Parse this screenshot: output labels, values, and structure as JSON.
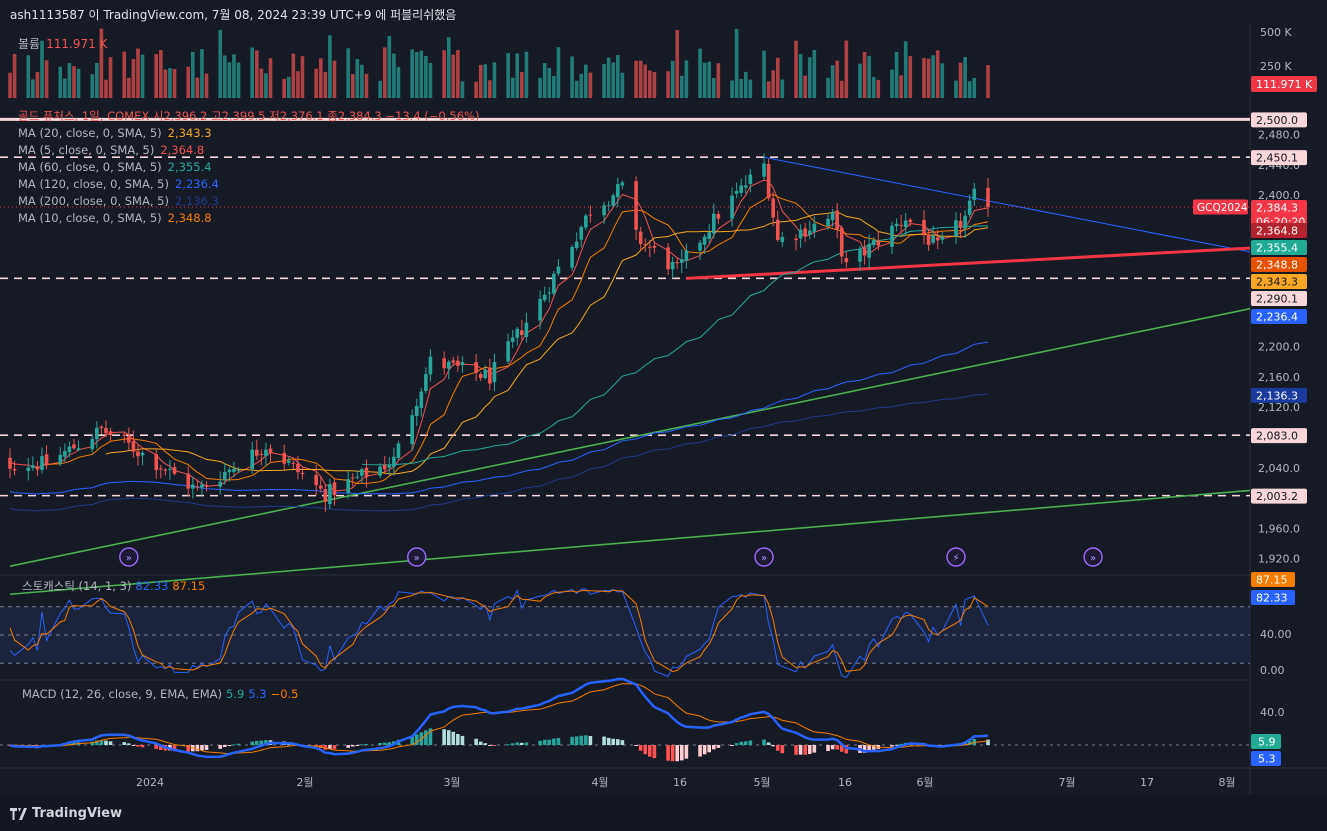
{
  "header": {
    "text": "ash1113587 이 TradingView.com, 7월 08, 2024 23:39 UTC+9 에 퍼블리쉬했음"
  },
  "volume": {
    "label": "볼륨",
    "value": "111.971 K",
    "axis": [
      "500 K",
      "250 K"
    ],
    "badge": "111.971 K"
  },
  "legend": {
    "title": "골드 퓨처스, 1일, COMEX  시2,396.2  고2,399.5  저2,376.1  종2,384.3  −13.4 (−0.56%)",
    "items": [
      {
        "label": "MA (20, close, 0, SMA, 5)",
        "value": "2,343.3",
        "color": "#f5a623"
      },
      {
        "label": "MA (5, close, 0, SMA, 5)",
        "value": "2,364.8",
        "color": "#ef5350"
      },
      {
        "label": "MA (60, close, 0, SMA, 5)",
        "value": "2,355.4",
        "color": "#26a69a"
      },
      {
        "label": "MA (120, close, 0, SMA, 5)",
        "value": "2,236.4",
        "color": "#2962ff"
      },
      {
        "label": "MA (200, close, 0, SMA, 5)",
        "value": "2,136.3",
        "color": "#1e3a8a"
      },
      {
        "label": "MA (10, close, 0, SMA, 5)",
        "value": "2,348.8",
        "color": "#f57c00"
      }
    ]
  },
  "price_axis": {
    "ticks": [
      "2,480.0",
      "2,440.0",
      "2,400.0",
      "2,200.0",
      "2,160.0",
      "2,120.0",
      "2,040.0",
      "1,960.0",
      "1,920.0"
    ],
    "badges": [
      {
        "text": "2,500.0",
        "bg": "#f8d7da",
        "fg": "#131722"
      },
      {
        "text": "2,450.1",
        "bg": "#f8d7da",
        "fg": "#131722"
      },
      {
        "text": "2,384.3",
        "bg": "#f23645",
        "fg": "#ffffff"
      },
      {
        "text": "06:20:20",
        "bg": "#f23645",
        "fg": "#ffffff"
      },
      {
        "text": "2,364.8",
        "bg": "#b2222f",
        "fg": "#ffffff"
      },
      {
        "text": "2,355.4",
        "bg": "#22ab94",
        "fg": "#ffffff"
      },
      {
        "text": "2,348.8",
        "bg": "#e65100",
        "fg": "#ffffff"
      },
      {
        "text": "2,343.3",
        "bg": "#f9a825",
        "fg": "#131722"
      },
      {
        "text": "2,290.1",
        "bg": "#f8d7da",
        "fg": "#131722"
      },
      {
        "text": "2,236.4",
        "bg": "#2962ff",
        "fg": "#ffffff"
      },
      {
        "text": "2,136.3",
        "bg": "#1a3a9e",
        "fg": "#ffffff"
      },
      {
        "text": "2,083.0",
        "bg": "#f8d7da",
        "fg": "#131722"
      },
      {
        "text": "2,003.2",
        "bg": "#f8d7da",
        "fg": "#131722"
      }
    ],
    "symbol_tag": "GCQ2024"
  },
  "stochastic": {
    "label": "스토캐스틱 (14, 1, 3)",
    "k": "82.33",
    "d": "87.15",
    "axis": [
      "40.00",
      "0.00"
    ],
    "badges": [
      {
        "text": "87.15",
        "bg": "#f57c00"
      },
      {
        "text": "82.33",
        "bg": "#2962ff"
      }
    ]
  },
  "macd": {
    "label": "MACD (12, 26, close, 9, EMA, EMA)",
    "hist": "5.9",
    "macd": "5.3",
    "signal": "−0.5",
    "axis": [
      "40.0"
    ],
    "badges": [
      {
        "text": "5.9",
        "bg": "#22ab94"
      },
      {
        "text": "5.3",
        "bg": "#2962ff"
      }
    ]
  },
  "time_axis": [
    "2024",
    "2월",
    "3월",
    "4월",
    "16",
    "5월",
    "16",
    "6월",
    "7월",
    "17",
    "8월"
  ],
  "footer": "TradingView",
  "colors": {
    "up": "#26a69a",
    "down": "#ef5350",
    "bg": "#161a25"
  },
  "chart_data": {
    "type": "candlestick",
    "title": "골드 퓨처스, 1일, COMEX",
    "symbol": "GCQ2024",
    "last_close": 2384.3,
    "y_range": [
      1905,
      2515
    ],
    "horizontal_levels": [
      2500.0,
      2450.1,
      2290.1,
      2083.0,
      2003.2
    ],
    "price_anchors": [
      {
        "date": "2023-12-15",
        "close": 2045
      },
      {
        "date": "2023-12-27",
        "close": 2090
      },
      {
        "date": "2024-01-02",
        "close": 2070
      },
      {
        "date": "2024-01-17",
        "close": 2010
      },
      {
        "date": "2024-02-01",
        "close": 2070
      },
      {
        "date": "2024-02-14",
        "close": 2005
      },
      {
        "date": "2024-02-29",
        "close": 2050
      },
      {
        "date": "2024-03-08",
        "close": 2180
      },
      {
        "date": "2024-03-21",
        "close": 2160
      },
      {
        "date": "2024-04-01",
        "close": 2260
      },
      {
        "date": "2024-04-12",
        "close": 2380
      },
      {
        "date": "2024-04-19",
        "close": 2410
      },
      {
        "date": "2024-04-22",
        "close": 2345
      },
      {
        "date": "2024-05-01",
        "close": 2300
      },
      {
        "date": "2024-05-10",
        "close": 2375
      },
      {
        "date": "2024-05-20",
        "close": 2440
      },
      {
        "date": "2024-05-23",
        "close": 2340
      },
      {
        "date": "2024-06-04",
        "close": 2370
      },
      {
        "date": "2024-06-07",
        "close": 2305
      },
      {
        "date": "2024-06-20",
        "close": 2370
      },
      {
        "date": "2024-06-27",
        "close": 2330
      },
      {
        "date": "2024-07-03",
        "close": 2370
      },
      {
        "date": "2024-07-05",
        "close": 2398
      },
      {
        "date": "2024-07-08",
        "close": 2384.3
      }
    ]
  }
}
